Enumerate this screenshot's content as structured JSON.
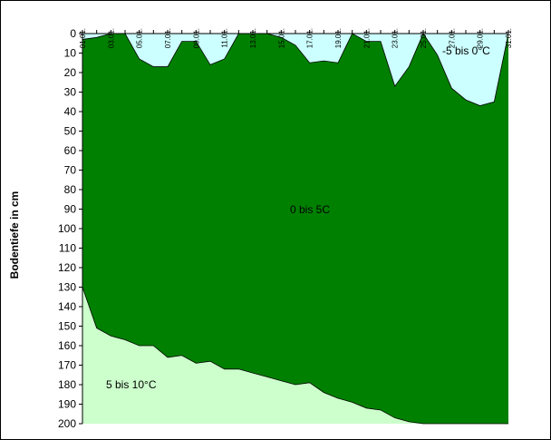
{
  "chart_data": {
    "type": "area",
    "ylabel": "Bodentiefe in cm",
    "y_reversed": true,
    "ylim": [
      0,
      200
    ],
    "yticks": [
      0,
      10,
      20,
      30,
      40,
      50,
      60,
      70,
      80,
      90,
      100,
      110,
      120,
      130,
      140,
      150,
      160,
      170,
      180,
      190,
      200
    ],
    "x": [
      "01.01.",
      "02.01.",
      "03.01.",
      "04.01.",
      "05.01.",
      "06.01.",
      "07.01.",
      "08.01.",
      "09.01.",
      "10.01.",
      "11.01.",
      "12.01.",
      "13.01.",
      "14.01.",
      "15.01.",
      "16.01.",
      "17.01.",
      "18.01.",
      "19.01.",
      "20.01.",
      "21.01.",
      "22.01.",
      "23.01.",
      "24.01.",
      "25.01.",
      "26.01.",
      "27.01.",
      "28.01.",
      "29.01.",
      "30.01.",
      "31.01."
    ],
    "xtick_labels": [
      "01.01.",
      "03.01.",
      "05.01.",
      "07.01.",
      "09.01.",
      "11.01.",
      "13.01.",
      "15.01.",
      "17.01.",
      "19.01.",
      "21.01.",
      "23.01.",
      "25.01.",
      "27.01.",
      "29.01.",
      "31.01."
    ],
    "series": [
      {
        "name": "-5 bis 0°C",
        "color": "#ccffff",
        "lower_boundary_cm": [
          3,
          2,
          0,
          0,
          13,
          17,
          17,
          4,
          4,
          16,
          13,
          0,
          0,
          0,
          2,
          6,
          15,
          14,
          15,
          0,
          4,
          4,
          27,
          17,
          0,
          11,
          28,
          34,
          37,
          35,
          0
        ]
      },
      {
        "name": "0 bis 5C",
        "color": "#008000",
        "lower_boundary_cm": [
          130,
          151,
          155,
          157,
          160,
          160,
          166,
          165,
          169,
          168,
          172,
          172,
          174,
          176,
          178,
          180,
          179,
          184,
          187,
          189,
          192,
          193,
          197,
          199,
          200,
          200,
          200,
          200,
          200,
          200,
          200
        ]
      },
      {
        "name": "5 bis 10°C",
        "color": "#ccffcc"
      }
    ],
    "region_labels": [
      "-5 bis 0°C",
      "0 bis 5C",
      "5 bis 10°C"
    ],
    "grid": false,
    "legend": "none"
  }
}
